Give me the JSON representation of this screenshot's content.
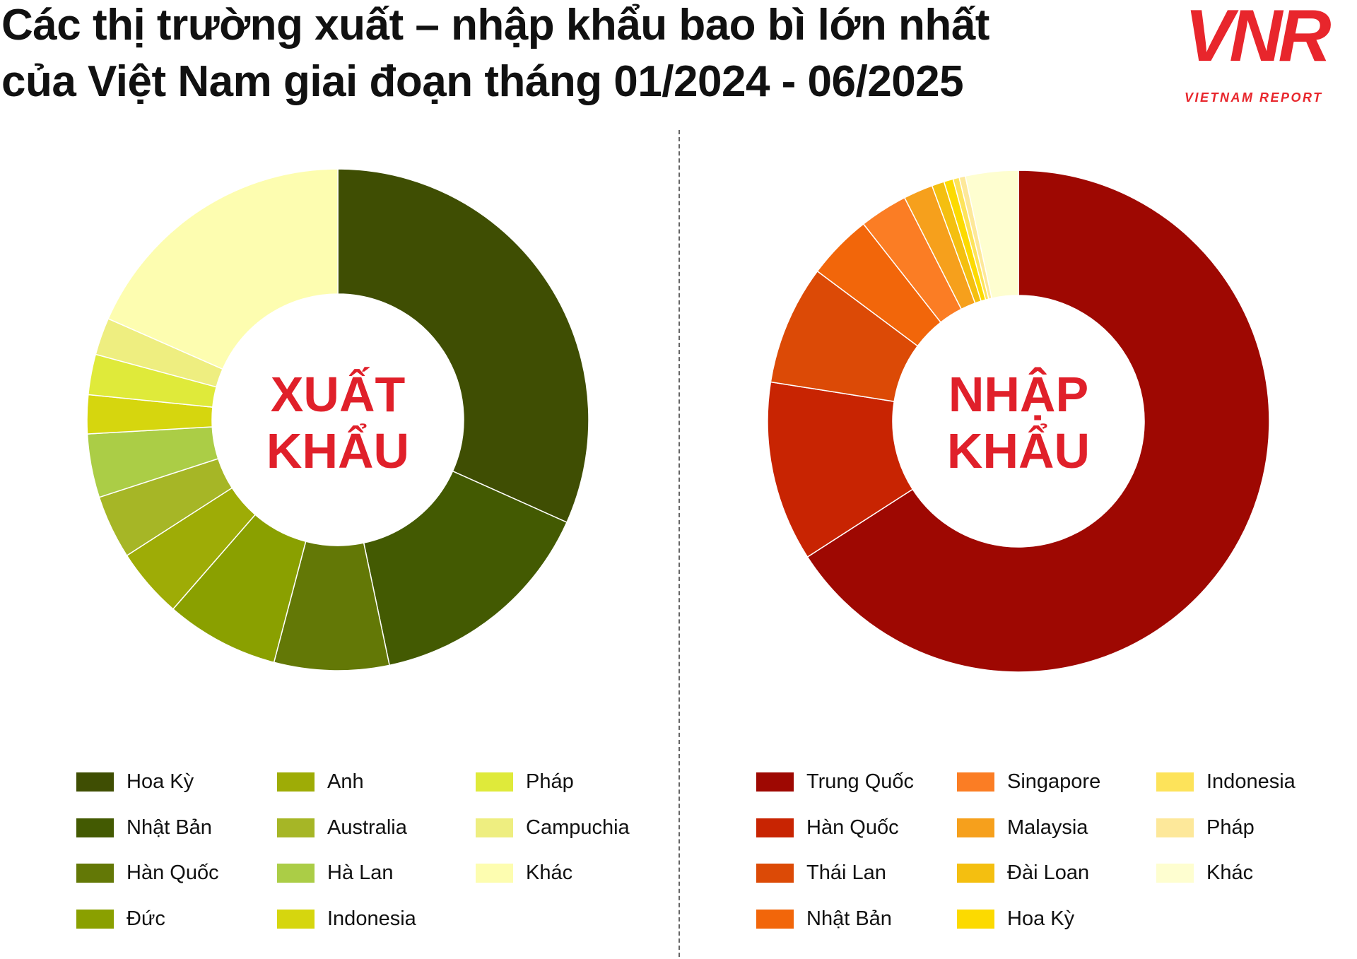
{
  "title_line1": "Các thị trường xuất – nhập khẩu bao bì lớn nhất",
  "title_line2": "của Việt Nam giai đoạn tháng 01/2024 - 06/2025",
  "logo": {
    "mark": "VNR",
    "sub": "VIETNAM REPORT"
  },
  "chart_data": [
    {
      "type": "pie",
      "variant": "donut",
      "center_label": [
        "XUẤT",
        "KHẨU"
      ],
      "start": "top, clockwise",
      "legend_placement": "bottom",
      "unit": "percent (estimated)",
      "categories": [
        "Hoa Kỳ",
        "Nhật Bản",
        "Hàn Quốc",
        "Đức",
        "Anh",
        "Australia",
        "Hà Lan",
        "Indonesia",
        "Pháp",
        "Campuchia",
        "Khác"
      ],
      "values": [
        31.7,
        15.0,
        7.4,
        7.3,
        4.5,
        4.1,
        4.1,
        2.5,
        2.6,
        2.4,
        18.4
      ],
      "colors": [
        "#3f4e03",
        "#435a02",
        "#637806",
        "#8aa000",
        "#9eac06",
        "#a6b626",
        "#abcd46",
        "#d6d60e",
        "#dfea3a",
        "#eeee80",
        "#fdfdb0"
      ]
    },
    {
      "type": "pie",
      "variant": "donut",
      "center_label": [
        "NHẬP",
        "KHẨU"
      ],
      "start": "top, clockwise",
      "legend_placement": "bottom",
      "unit": "percent (estimated)",
      "categories": [
        "Trung Quốc",
        "Hàn Quốc",
        "Thái Lan",
        "Nhật Bản",
        "Singapore",
        "Malaysia",
        "Đài Loan",
        "Hoa Kỳ",
        "Indonesia",
        "Pháp",
        "Khác"
      ],
      "values": [
        65.9,
        11.6,
        7.7,
        4.2,
        3.1,
        1.9,
        0.8,
        0.6,
        0.4,
        0.4,
        3.4
      ],
      "colors": [
        "#9e0802",
        "#c82402",
        "#dc4a06",
        "#f2660a",
        "#fb7d24",
        "#f6a01c",
        "#f4bf10",
        "#fcda00",
        "#fde35a",
        "#fde89a",
        "#fefed0"
      ]
    }
  ]
}
